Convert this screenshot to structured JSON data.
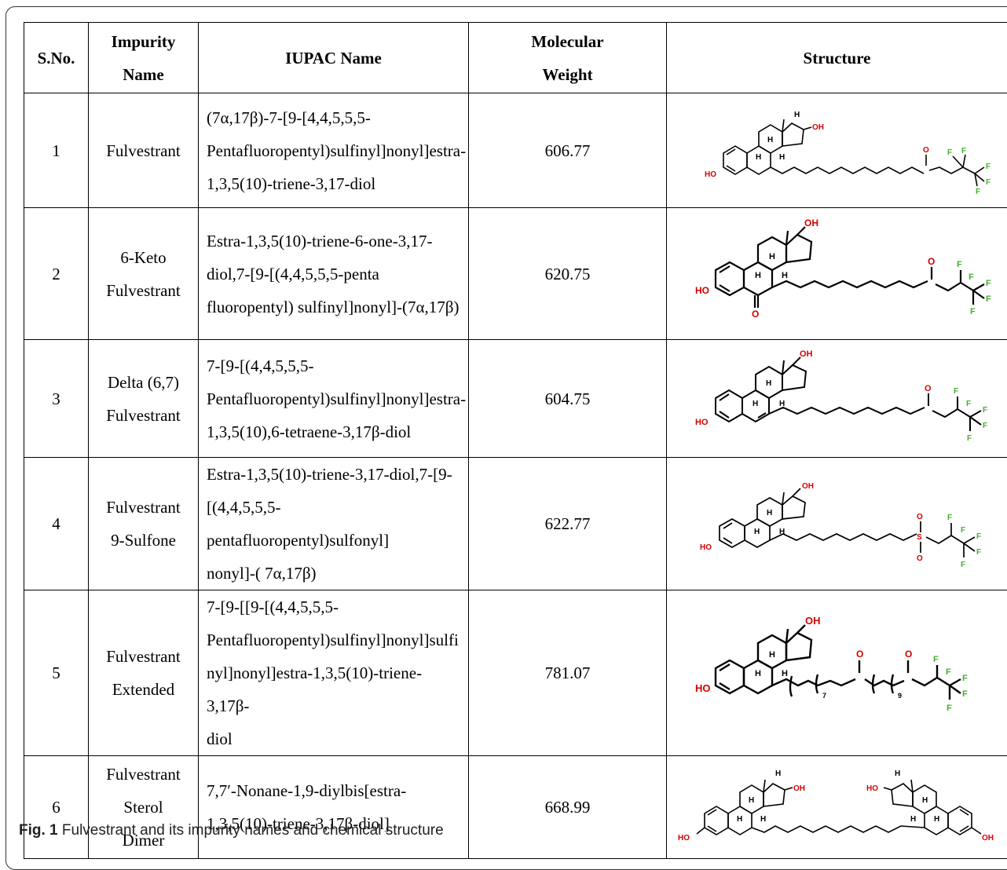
{
  "table": {
    "headers": {
      "sno": "S.No.",
      "impurity": "Impurity\nName",
      "iupac": "IUPAC Name",
      "mw": "Molecular\nWeight",
      "structure": "Structure"
    },
    "rows": [
      {
        "sno": "1",
        "name": "Fulvestrant",
        "iupac": "(7α,17β)-7-[9-[4,4,5,5,5-\nPentafluoropentyl)sulfinyl]nonyl]estra-\n1,3,5(10)-triene-3,17-diol",
        "mw": "606.77"
      },
      {
        "sno": "2",
        "name": "6-Keto\nFulvestrant",
        "iupac": "Estra-1,3,5(10)-triene-6-one-3,17-\ndiol,7-[9-[(4,4,5,5,5-penta\nfluoropentyl) sulfinyl]nonyl]-(7α,17β)",
        "mw": "620.75"
      },
      {
        "sno": "3",
        "name": "Delta (6,7)\nFulvestrant",
        "iupac": "7-[9-[(4,4,5,5,5-\nPentafluoropentyl)sulfinyl]nonyl]estra-\n1,3,5(10),6-tetraene-3,17β-diol",
        "mw": "604.75"
      },
      {
        "sno": "4",
        "name": "Fulvestrant\n9-Sulfone",
        "iupac": "Estra-1,3,5(10)-triene-3,17-diol,7-[9-\n[(4,4,5,5,5-pentafluoropentyl)sulfonyl]\nnonyl]-( 7α,17β)",
        "mw": "622.77"
      },
      {
        "sno": "5",
        "name": "Fulvestrant\nExtended",
        "iupac": "7-[9-[[9-[(4,4,5,5,5-\nPentafluoropentyl)sulfinyl]nonyl]sulfi\nnyl]nonyl]estra-1,3,5(10)-triene-3,17β-\ndiol",
        "mw": "781.07"
      },
      {
        "sno": "6",
        "name": "Fulvestrant\nSterol\nDimer",
        "iupac": "7,7′-Nonane-1,9-diylbis[estra-\n1,3,5(10)-triene-3,17β-diol]",
        "mw": "668.99"
      }
    ]
  },
  "structure_labels": {
    "oh": "OH",
    "ho": "HO",
    "h": "H",
    "o": "O",
    "s": "S",
    "f": "F",
    "n7": "7",
    "n9": "9"
  },
  "caption": {
    "label": "Fig. 1",
    "text": " Fulvestrant and its impurity names and chemical structure"
  },
  "colors": {
    "heteroatom": "#d40000",
    "fluorine": "#43b02a"
  }
}
